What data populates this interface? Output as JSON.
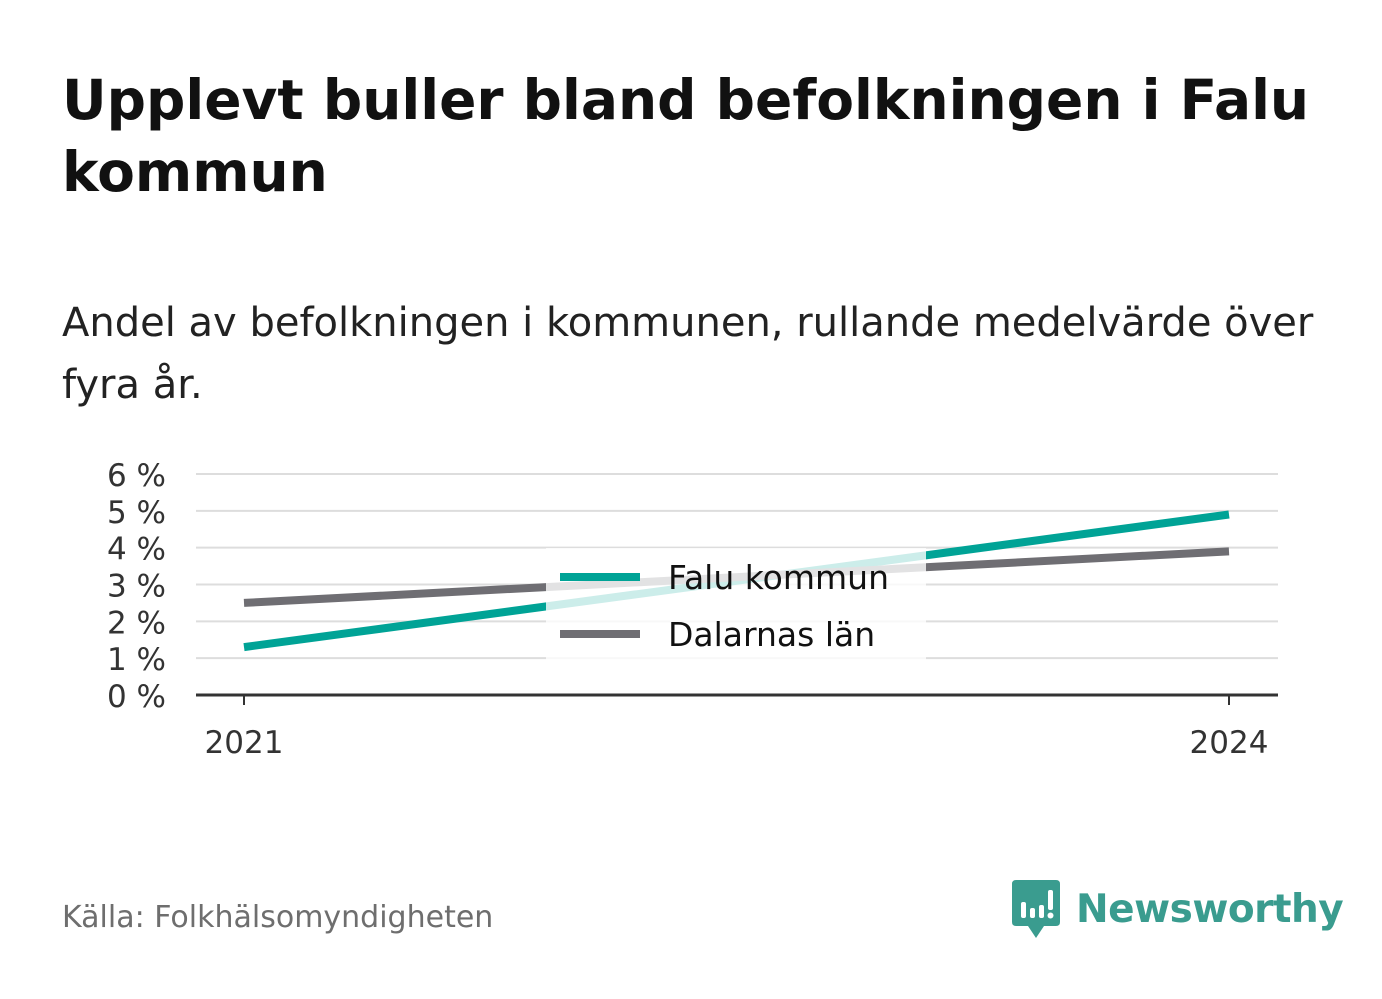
{
  "header": {
    "title": "Upplevt buller bland befolkningen i Falu kommun",
    "subtitle": "Andel av befolkningen i kommunen, rullande medelvärde över fyra år."
  },
  "chart_data": {
    "type": "line",
    "x": [
      "2021",
      "2024"
    ],
    "series": [
      {
        "name": "Falu kommun",
        "values": [
          1.3,
          4.9
        ],
        "color": "#00a396"
      },
      {
        "name": "Dalarnas län",
        "values": [
          2.5,
          3.9
        ],
        "color": "#6f6e73"
      }
    ],
    "yticks": [
      "0 %",
      "1 %",
      "2 %",
      "3 %",
      "4 %",
      "5 %",
      "6 %"
    ],
    "ylim": [
      0,
      6
    ],
    "grid": true,
    "legend_position": "center"
  },
  "footer": {
    "source": "Källa: Folkhälsomyndigheten",
    "brand": "Newsworthy",
    "brand_color": "#3a9c8f",
    "brand_icon": "bar-chart-speech-bubble-icon"
  }
}
